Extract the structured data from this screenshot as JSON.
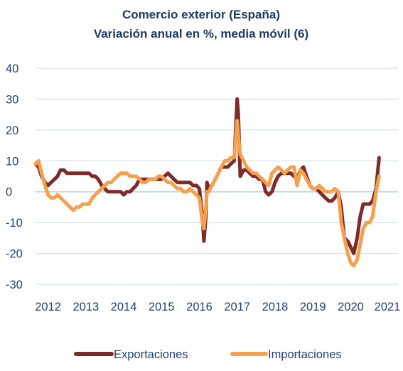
{
  "colors": {
    "exportaciones": "#7f2a2a",
    "importaciones": "#f5a04d",
    "gridline": "#c9d7ea",
    "zero_line": "#c9d7ea",
    "text": "#243f73",
    "title": "#1f3864"
  },
  "chart_data": {
    "type": "line",
    "title": "Comercio exterior  (España)",
    "subtitle": "Variación anual en %, media móvil (6)",
    "xlabel": "",
    "ylabel": "",
    "ylim": [
      -30,
      40
    ],
    "xlim": [
      2011.67,
      2021.25
    ],
    "yticks": [
      40,
      30,
      20,
      10,
      0,
      -10,
      -20,
      -30
    ],
    "yticklabels": [
      "40",
      "30",
      "20",
      "10",
      "0",
      "-10",
      "-20",
      "-30"
    ],
    "xticklabels": [
      "2012",
      "2013",
      "2014",
      "2015",
      "2016",
      "2017",
      "2018",
      "2019",
      "2020",
      "2021"
    ],
    "grid": true,
    "legend_position": "bottom",
    "series": [
      {
        "name": "Exportaciones",
        "points": [
          [
            2011.67,
            9
          ],
          [
            2011.75,
            8
          ],
          [
            2011.83,
            5
          ],
          [
            2011.92,
            3
          ],
          [
            2012.0,
            2
          ],
          [
            2012.08,
            3
          ],
          [
            2012.17,
            4
          ],
          [
            2012.25,
            5
          ],
          [
            2012.33,
            7
          ],
          [
            2012.42,
            7
          ],
          [
            2012.5,
            6
          ],
          [
            2012.58,
            6
          ],
          [
            2012.67,
            6
          ],
          [
            2012.75,
            6
          ],
          [
            2012.83,
            6
          ],
          [
            2012.92,
            6
          ],
          [
            2013.0,
            6
          ],
          [
            2013.08,
            6
          ],
          [
            2013.17,
            5
          ],
          [
            2013.25,
            5
          ],
          [
            2013.33,
            4
          ],
          [
            2013.42,
            2
          ],
          [
            2013.5,
            1
          ],
          [
            2013.58,
            0
          ],
          [
            2013.67,
            0
          ],
          [
            2013.75,
            0
          ],
          [
            2013.83,
            0
          ],
          [
            2013.92,
            0
          ],
          [
            2014.0,
            -1
          ],
          [
            2014.08,
            0
          ],
          [
            2014.17,
            0
          ],
          [
            2014.25,
            1
          ],
          [
            2014.33,
            2
          ],
          [
            2014.42,
            4
          ],
          [
            2014.5,
            4
          ],
          [
            2014.58,
            4
          ],
          [
            2014.67,
            4
          ],
          [
            2014.75,
            4
          ],
          [
            2014.83,
            4
          ],
          [
            2014.92,
            4
          ],
          [
            2015.0,
            4
          ],
          [
            2015.08,
            5
          ],
          [
            2015.17,
            6
          ],
          [
            2015.25,
            5
          ],
          [
            2015.33,
            4
          ],
          [
            2015.42,
            3
          ],
          [
            2015.5,
            3
          ],
          [
            2015.58,
            3
          ],
          [
            2015.67,
            3
          ],
          [
            2015.75,
            3
          ],
          [
            2015.83,
            2
          ],
          [
            2015.92,
            2
          ],
          [
            2016.0,
            1
          ],
          [
            2016.08,
            -8
          ],
          [
            2016.12,
            -16
          ],
          [
            2016.17,
            -8
          ],
          [
            2016.2,
            3
          ],
          [
            2016.25,
            1
          ],
          [
            2016.33,
            2
          ],
          [
            2016.42,
            4
          ],
          [
            2016.5,
            6
          ],
          [
            2016.58,
            8
          ],
          [
            2016.67,
            8
          ],
          [
            2016.75,
            8
          ],
          [
            2016.83,
            9
          ],
          [
            2016.92,
            10
          ],
          [
            2017.0,
            30
          ],
          [
            2017.03,
            25
          ],
          [
            2017.08,
            5
          ],
          [
            2017.17,
            7
          ],
          [
            2017.25,
            7
          ],
          [
            2017.33,
            6
          ],
          [
            2017.42,
            5
          ],
          [
            2017.5,
            5
          ],
          [
            2017.58,
            4
          ],
          [
            2017.67,
            4
          ],
          [
            2017.75,
            0
          ],
          [
            2017.83,
            -1
          ],
          [
            2017.92,
            0
          ],
          [
            2018.0,
            3
          ],
          [
            2018.08,
            5
          ],
          [
            2018.17,
            6
          ],
          [
            2018.25,
            6
          ],
          [
            2018.33,
            6
          ],
          [
            2018.42,
            6
          ],
          [
            2018.5,
            5
          ],
          [
            2018.58,
            4
          ],
          [
            2018.67,
            7
          ],
          [
            2018.75,
            8
          ],
          [
            2018.83,
            5
          ],
          [
            2018.92,
            2
          ],
          [
            2019.0,
            1
          ],
          [
            2019.08,
            1
          ],
          [
            2019.17,
            0
          ],
          [
            2019.25,
            -1
          ],
          [
            2019.33,
            -2
          ],
          [
            2019.42,
            -3
          ],
          [
            2019.5,
            -3
          ],
          [
            2019.58,
            -2
          ],
          [
            2019.67,
            0
          ],
          [
            2019.75,
            -5
          ],
          [
            2019.83,
            -15
          ],
          [
            2019.92,
            -16
          ],
          [
            2020.0,
            -18
          ],
          [
            2020.08,
            -20
          ],
          [
            2020.17,
            -15
          ],
          [
            2020.25,
            -8
          ],
          [
            2020.33,
            -4
          ],
          [
            2020.42,
            -4
          ],
          [
            2020.5,
            -4
          ],
          [
            2020.58,
            -3
          ],
          [
            2020.67,
            1
          ],
          [
            2020.75,
            11
          ]
        ]
      },
      {
        "name": "Importaciones",
        "points": [
          [
            2011.67,
            9
          ],
          [
            2011.75,
            10
          ],
          [
            2011.83,
            6
          ],
          [
            2011.92,
            2
          ],
          [
            2012.0,
            -1
          ],
          [
            2012.08,
            -2
          ],
          [
            2012.17,
            -2
          ],
          [
            2012.25,
            -1
          ],
          [
            2012.33,
            -2
          ],
          [
            2012.42,
            -3
          ],
          [
            2012.5,
            -4
          ],
          [
            2012.58,
            -5
          ],
          [
            2012.67,
            -6
          ],
          [
            2012.75,
            -5
          ],
          [
            2012.83,
            -5
          ],
          [
            2012.92,
            -4
          ],
          [
            2013.0,
            -4
          ],
          [
            2013.08,
            -4
          ],
          [
            2013.17,
            -2
          ],
          [
            2013.25,
            -1
          ],
          [
            2013.33,
            0
          ],
          [
            2013.42,
            1
          ],
          [
            2013.5,
            2
          ],
          [
            2013.58,
            3
          ],
          [
            2013.67,
            3
          ],
          [
            2013.75,
            4
          ],
          [
            2013.83,
            5
          ],
          [
            2013.92,
            6
          ],
          [
            2014.0,
            6
          ],
          [
            2014.08,
            6
          ],
          [
            2014.17,
            5
          ],
          [
            2014.25,
            5
          ],
          [
            2014.33,
            5
          ],
          [
            2014.42,
            4
          ],
          [
            2014.5,
            3
          ],
          [
            2014.58,
            3
          ],
          [
            2014.67,
            4
          ],
          [
            2014.75,
            4
          ],
          [
            2014.83,
            4
          ],
          [
            2014.92,
            5
          ],
          [
            2015.0,
            5
          ],
          [
            2015.08,
            4
          ],
          [
            2015.17,
            3
          ],
          [
            2015.25,
            3
          ],
          [
            2015.33,
            2
          ],
          [
            2015.42,
            1
          ],
          [
            2015.5,
            1
          ],
          [
            2015.58,
            0
          ],
          [
            2015.67,
            0
          ],
          [
            2015.75,
            1
          ],
          [
            2015.83,
            0
          ],
          [
            2015.92,
            -1
          ],
          [
            2016.0,
            -2
          ],
          [
            2016.08,
            -10
          ],
          [
            2016.12,
            -12
          ],
          [
            2016.17,
            -5
          ],
          [
            2016.2,
            0
          ],
          [
            2016.25,
            0
          ],
          [
            2016.33,
            2
          ],
          [
            2016.42,
            4
          ],
          [
            2016.5,
            6
          ],
          [
            2016.58,
            8
          ],
          [
            2016.67,
            10
          ],
          [
            2016.75,
            10
          ],
          [
            2016.83,
            11
          ],
          [
            2016.92,
            11
          ],
          [
            2017.0,
            23
          ],
          [
            2017.03,
            18
          ],
          [
            2017.08,
            12
          ],
          [
            2017.17,
            10
          ],
          [
            2017.25,
            8
          ],
          [
            2017.33,
            7
          ],
          [
            2017.42,
            6
          ],
          [
            2017.5,
            6
          ],
          [
            2017.58,
            5
          ],
          [
            2017.67,
            4
          ],
          [
            2017.75,
            3
          ],
          [
            2017.83,
            2
          ],
          [
            2017.92,
            6
          ],
          [
            2018.0,
            7
          ],
          [
            2018.08,
            8
          ],
          [
            2018.17,
            7
          ],
          [
            2018.25,
            6
          ],
          [
            2018.33,
            7
          ],
          [
            2018.42,
            8
          ],
          [
            2018.5,
            8
          ],
          [
            2018.58,
            2
          ],
          [
            2018.67,
            7
          ],
          [
            2018.75,
            6
          ],
          [
            2018.83,
            4
          ],
          [
            2018.92,
            2
          ],
          [
            2019.0,
            1
          ],
          [
            2019.08,
            1
          ],
          [
            2019.17,
            2
          ],
          [
            2019.25,
            1
          ],
          [
            2019.33,
            0
          ],
          [
            2019.42,
            0
          ],
          [
            2019.5,
            0
          ],
          [
            2019.58,
            1
          ],
          [
            2019.67,
            0
          ],
          [
            2019.75,
            -10
          ],
          [
            2019.83,
            -15
          ],
          [
            2019.92,
            -20
          ],
          [
            2020.0,
            -23
          ],
          [
            2020.08,
            -24
          ],
          [
            2020.17,
            -22
          ],
          [
            2020.25,
            -17
          ],
          [
            2020.33,
            -12
          ],
          [
            2020.42,
            -10
          ],
          [
            2020.5,
            -10
          ],
          [
            2020.58,
            -8
          ],
          [
            2020.67,
            0
          ],
          [
            2020.75,
            5
          ]
        ]
      }
    ]
  }
}
